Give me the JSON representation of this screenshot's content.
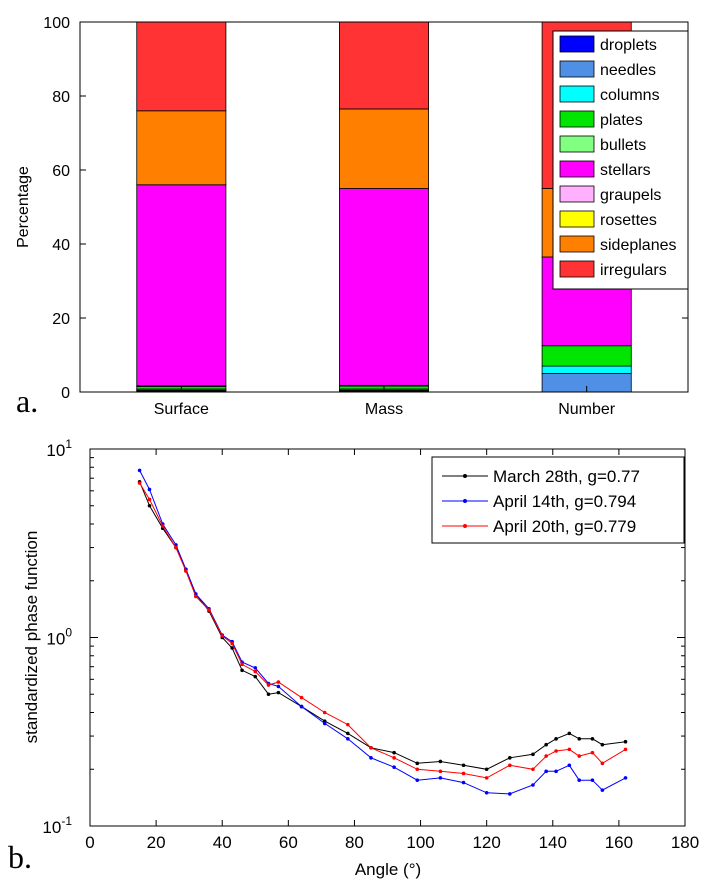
{
  "chart_data": [
    {
      "type": "bar",
      "stacked": true,
      "panel_label": "a.",
      "title": "",
      "xlabel": "",
      "ylabel": "Percentage",
      "ylim": [
        0,
        100
      ],
      "yticks": [
        0,
        20,
        40,
        60,
        80,
        100
      ],
      "categories": [
        "Surface",
        "Mass",
        "Number"
      ],
      "legend_position": "top-right",
      "series": [
        {
          "name": "droplets",
          "color": "#0000ff",
          "values": [
            0.3,
            0.3,
            0.0
          ]
        },
        {
          "name": "needles",
          "color": "#4f8fe6",
          "values": [
            0.2,
            0.2,
            5.0
          ]
        },
        {
          "name": "columns",
          "color": "#00ffff",
          "values": [
            0.3,
            0.3,
            2.0
          ]
        },
        {
          "name": "plates",
          "color": "#00e600",
          "values": [
            0.7,
            0.8,
            5.5
          ]
        },
        {
          "name": "bullets",
          "color": "#80ff80",
          "values": [
            0.2,
            0.2,
            0.0
          ]
        },
        {
          "name": "stellars",
          "color": "#ff00ff",
          "values": [
            54.3,
            53.2,
            24.0
          ]
        },
        {
          "name": "graupels",
          "color": "#ffb0ff",
          "values": [
            0.0,
            0.0,
            0.0
          ]
        },
        {
          "name": "rosettes",
          "color": "#ffff00",
          "values": [
            0.0,
            0.0,
            0.0
          ]
        },
        {
          "name": "sideplanes",
          "color": "#ff8000",
          "values": [
            20.0,
            21.5,
            18.5
          ]
        },
        {
          "name": "irregulars",
          "color": "#ff3333",
          "values": [
            24.0,
            23.5,
            45.0
          ]
        }
      ]
    },
    {
      "type": "line",
      "panel_label": "b.",
      "title": "",
      "xlabel": "Angle (°)",
      "ylabel": "standardized phase function",
      "xlim": [
        0,
        180
      ],
      "xticks": [
        0,
        20,
        40,
        60,
        80,
        100,
        120,
        140,
        160,
        180
      ],
      "ylim": [
        0.1,
        10
      ],
      "y_scale": "log",
      "yticks": [
        {
          "value": 0.1,
          "base": "10",
          "exp": "-1"
        },
        {
          "value": 1,
          "base": "10",
          "exp": "0"
        },
        {
          "value": 10,
          "base": "10",
          "exp": "1"
        }
      ],
      "legend_position": "top-right",
      "series": [
        {
          "name": "March 28th, g=0.77",
          "color": "#000000",
          "x": [
            15,
            18,
            22,
            26,
            29,
            32,
            36,
            40,
            43,
            46,
            50,
            54,
            57,
            64,
            71,
            78,
            85,
            92,
            99,
            106,
            113,
            120,
            127,
            134,
            138,
            141,
            145,
            148,
            152,
            155,
            162
          ],
          "y": [
            6.7,
            5.0,
            3.8,
            3.0,
            2.3,
            1.7,
            1.38,
            1.0,
            0.88,
            0.67,
            0.62,
            0.5,
            0.51,
            0.43,
            0.36,
            0.31,
            0.26,
            0.245,
            0.215,
            0.22,
            0.21,
            0.2,
            0.23,
            0.24,
            0.27,
            0.29,
            0.31,
            0.29,
            0.29,
            0.27,
            0.28
          ]
        },
        {
          "name": "April 14th, g=0.794",
          "color": "#0000ff",
          "x": [
            15,
            18,
            22,
            26,
            29,
            32,
            36,
            40,
            43,
            46,
            50,
            54,
            57,
            64,
            71,
            78,
            85,
            92,
            99,
            106,
            113,
            120,
            127,
            134,
            138,
            141,
            145,
            148,
            152,
            155,
            162
          ],
          "y": [
            7.7,
            6.1,
            4.0,
            3.1,
            2.3,
            1.7,
            1.42,
            1.03,
            0.95,
            0.74,
            0.69,
            0.57,
            0.55,
            0.43,
            0.35,
            0.29,
            0.23,
            0.205,
            0.175,
            0.18,
            0.17,
            0.15,
            0.148,
            0.165,
            0.195,
            0.195,
            0.21,
            0.175,
            0.175,
            0.155,
            0.18
          ]
        },
        {
          "name": "April 20th, g=0.779",
          "color": "#ff0000",
          "x": [
            15,
            18,
            22,
            26,
            29,
            32,
            36,
            40,
            43,
            46,
            50,
            54,
            57,
            64,
            71,
            78,
            85,
            92,
            99,
            106,
            113,
            120,
            127,
            134,
            138,
            141,
            145,
            148,
            152,
            155,
            162
          ],
          "y": [
            6.6,
            5.4,
            3.9,
            3.0,
            2.25,
            1.65,
            1.4,
            1.02,
            0.93,
            0.72,
            0.66,
            0.56,
            0.58,
            0.48,
            0.4,
            0.345,
            0.26,
            0.23,
            0.2,
            0.195,
            0.19,
            0.18,
            0.21,
            0.2,
            0.235,
            0.25,
            0.255,
            0.235,
            0.245,
            0.215,
            0.255
          ]
        }
      ]
    }
  ]
}
